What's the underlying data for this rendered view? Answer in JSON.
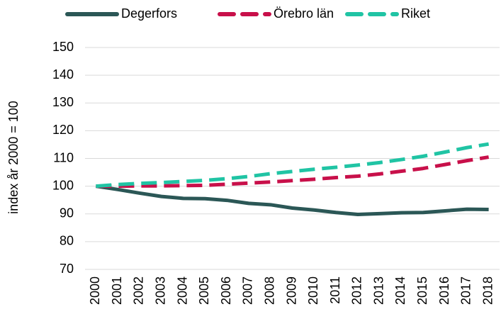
{
  "chart_data": {
    "type": "line",
    "y_label": "index år 2000 = 100",
    "categories": [
      "2000",
      "2001",
      "2002",
      "2003",
      "2004",
      "2005",
      "2006",
      "2007",
      "2008",
      "2009",
      "2010",
      "2011",
      "2012",
      "2013",
      "2014",
      "2015",
      "2016",
      "2017",
      "2018"
    ],
    "series": [
      {
        "name": "Degerfors",
        "color": "#2b5756",
        "dash": "solid",
        "values": [
          100,
          98.8,
          97.5,
          96.3,
          95.6,
          95.5,
          94.9,
          93.8,
          93.3,
          92.1,
          91.4,
          90.5,
          89.8,
          90.1,
          90.4,
          90.5,
          91.1,
          91.7,
          91.6
        ]
      },
      {
        "name": "Örebro län",
        "color": "#c8104a",
        "dash": "dashed",
        "values": [
          100,
          100,
          100.1,
          100.1,
          100.2,
          100.3,
          100.7,
          101.1,
          101.5,
          102,
          102.5,
          103.1,
          103.6,
          104.4,
          105.4,
          106.4,
          107.8,
          109.2,
          110.5
        ]
      },
      {
        "name": "Riket",
        "color": "#20c4a4",
        "dash": "dashed",
        "values": [
          100,
          100.6,
          101,
          101.3,
          101.7,
          102.1,
          102.7,
          103.5,
          104.5,
          105.3,
          106.1,
          106.8,
          107.6,
          108.5,
          109.6,
          110.8,
          112.3,
          113.9,
          115.2
        ]
      }
    ],
    "ylim": [
      70,
      150
    ],
    "yticks": [
      70,
      80,
      90,
      100,
      110,
      120,
      130,
      140,
      150
    ],
    "grid": true,
    "legend": "top"
  }
}
